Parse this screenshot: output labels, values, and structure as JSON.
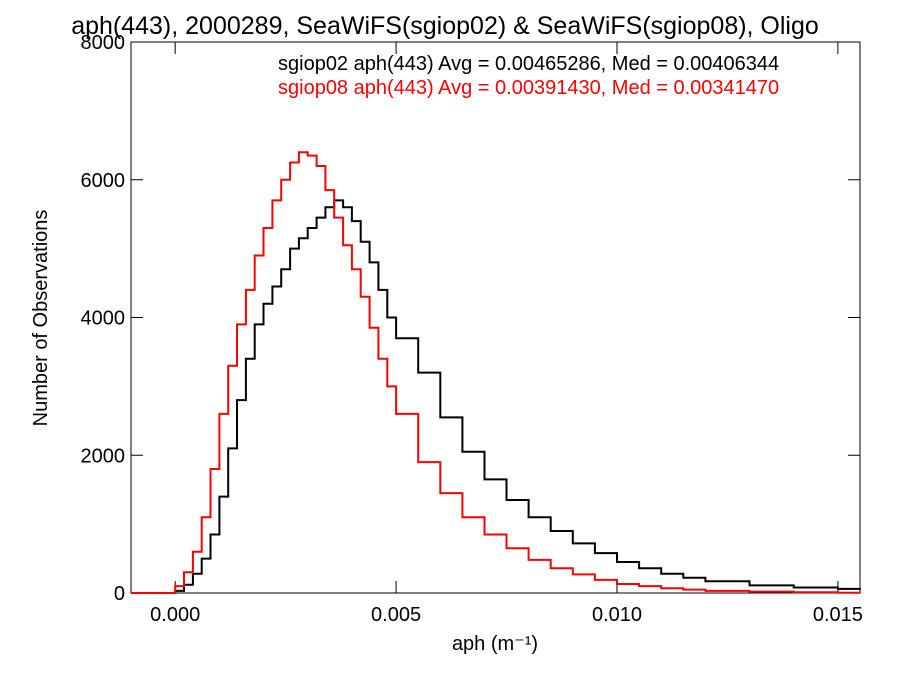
{
  "chart_data": {
    "type": "line",
    "title": "aph(443), 2000289, SeaWiFS(sgiop02) & SeaWiFS(sgiop08), Oligo",
    "xlabel": "aph (m⁻¹)",
    "ylabel": "Number of Observations",
    "xlim": [
      -0.001,
      0.0155
    ],
    "ylim": [
      0,
      8000
    ],
    "x_ticks": [
      0.0,
      0.005,
      0.01,
      0.015
    ],
    "x_tick_labels": [
      "0.000",
      "0.005",
      "0.010",
      "0.015"
    ],
    "y_ticks": [
      0,
      2000,
      4000,
      6000,
      8000
    ],
    "y_tick_labels": [
      "0",
      "2000",
      "4000",
      "6000",
      "8000"
    ],
    "grid": false,
    "step": true,
    "annotations": [
      {
        "text": "sgiop02 aph(443) Avg = 0.00465286, Med = 0.00406344",
        "color": "#000000"
      },
      {
        "text": "sgiop08 aph(443) Avg = 0.00391430, Med = 0.00341470",
        "color": "#ff0000"
      }
    ],
    "series": [
      {
        "color": "#000000",
        "x": [
          -0.001,
          0.0,
          0.0002,
          0.0004,
          0.0006,
          0.0008,
          0.001,
          0.0012,
          0.0014,
          0.0016,
          0.0018,
          0.002,
          0.0022,
          0.0024,
          0.0026,
          0.0028,
          0.003,
          0.0032,
          0.0034,
          0.0036,
          0.0038,
          0.004,
          0.0042,
          0.0044,
          0.0046,
          0.0048,
          0.005,
          0.0055,
          0.006,
          0.0065,
          0.007,
          0.0075,
          0.008,
          0.0085,
          0.009,
          0.0095,
          0.01,
          0.0105,
          0.011,
          0.0115,
          0.012,
          0.013,
          0.014,
          0.015,
          0.0155
        ],
        "values": [
          0,
          30,
          120,
          280,
          500,
          850,
          1400,
          2100,
          2800,
          3400,
          3900,
          4200,
          4450,
          4700,
          5000,
          5150,
          5300,
          5450,
          5600,
          5700,
          5600,
          5400,
          5100,
          4800,
          4400,
          4000,
          3700,
          3200,
          2550,
          2050,
          1650,
          1350,
          1100,
          900,
          720,
          580,
          450,
          360,
          280,
          220,
          170,
          110,
          80,
          60,
          50
        ]
      },
      {
        "color": "#ff0000",
        "x": [
          -0.001,
          0.0,
          0.0002,
          0.0004,
          0.0006,
          0.0008,
          0.001,
          0.0012,
          0.0014,
          0.0016,
          0.0018,
          0.002,
          0.0022,
          0.0024,
          0.0026,
          0.0028,
          0.003,
          0.0032,
          0.0034,
          0.0036,
          0.0038,
          0.004,
          0.0042,
          0.0044,
          0.0046,
          0.0048,
          0.005,
          0.0055,
          0.006,
          0.0065,
          0.007,
          0.0075,
          0.008,
          0.0085,
          0.009,
          0.0095,
          0.01,
          0.0105,
          0.011,
          0.0115,
          0.012,
          0.013,
          0.014,
          0.015,
          0.0155
        ],
        "values": [
          0,
          100,
          300,
          600,
          1100,
          1800,
          2600,
          3300,
          3900,
          4400,
          4900,
          5300,
          5700,
          6000,
          6250,
          6400,
          6350,
          6200,
          5850,
          5450,
          5050,
          4700,
          4300,
          3850,
          3400,
          3000,
          2600,
          1900,
          1450,
          1100,
          850,
          650,
          480,
          360,
          270,
          190,
          130,
          100,
          70,
          50,
          30,
          20,
          10,
          5,
          0
        ]
      }
    ]
  }
}
